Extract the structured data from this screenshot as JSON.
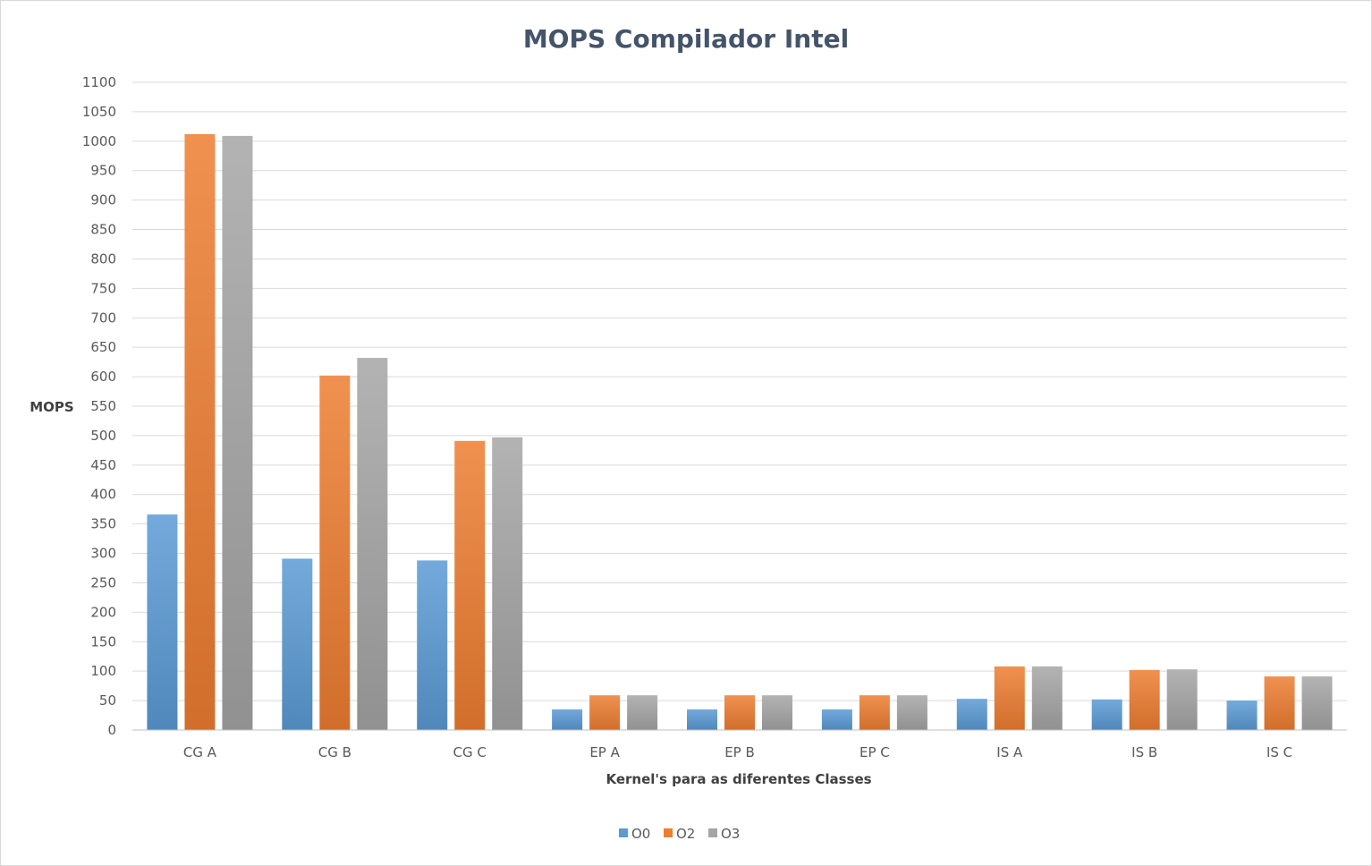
{
  "chart_data": {
    "type": "bar",
    "title": "MOPS Compilador Intel",
    "xlabel": "Kernel's para as diferentes Classes",
    "ylabel": "MOPS",
    "ylim": [
      0,
      1100
    ],
    "ytick_step": 50,
    "grid": true,
    "legend_position": "bottom",
    "categories": [
      "CG A",
      "CG B",
      "CG C",
      "EP A",
      "EP B",
      "EP C",
      "IS A",
      "IS B",
      "IS C"
    ],
    "series": [
      {
        "name": "O0",
        "color": "#5b9bd5",
        "values": [
          366,
          291,
          288,
          35,
          35,
          35,
          53,
          52,
          50
        ]
      },
      {
        "name": "O2",
        "color": "#ed7d31",
        "values": [
          1012,
          602,
          491,
          59,
          59,
          59,
          108,
          102,
          91
        ]
      },
      {
        "name": "O3",
        "color": "#a5a5a5",
        "values": [
          1009,
          632,
          497,
          59,
          59,
          59,
          108,
          103,
          91
        ]
      }
    ]
  }
}
